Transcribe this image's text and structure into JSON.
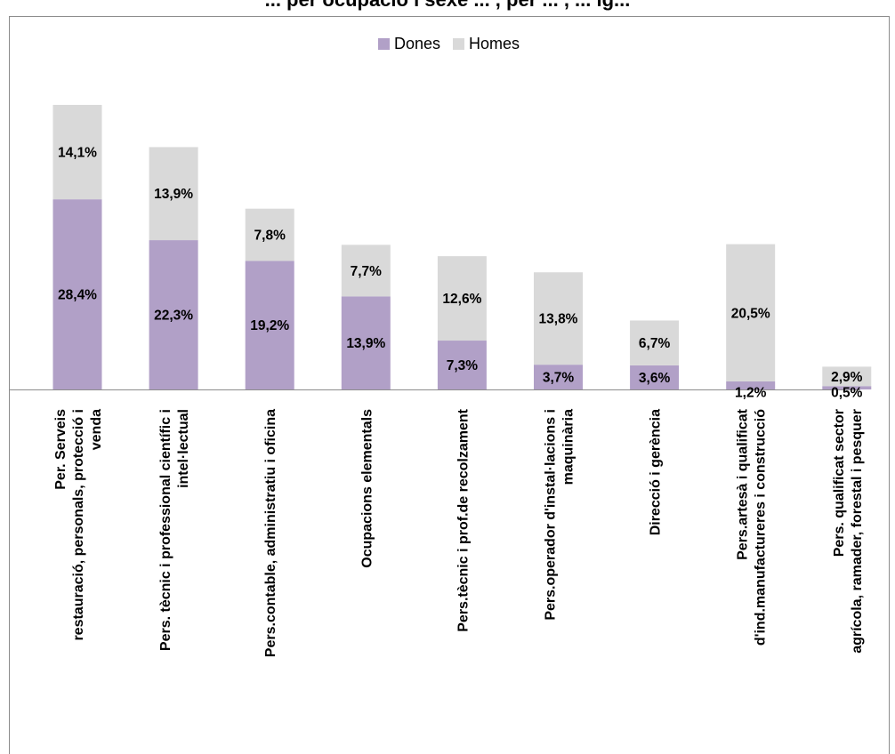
{
  "chart_data": {
    "type": "bar",
    "stacked": true,
    "title": "... per ocupació i sexe ... , per ... , ... ig...",
    "legend": {
      "position": "top-center"
    },
    "categories": [
      [
        "Per. Serveis",
        "restauració, personals, protecció i",
        "venda"
      ],
      [
        "Pers. tècnic i professional científic i",
        "intel·lectual"
      ],
      [
        "Pers.contable, administratiu i oficina"
      ],
      [
        "Ocupacions elementals"
      ],
      [
        "Pers.tècnic i prof.de recolzament"
      ],
      [
        "Pers.operador d'instal·lacions i",
        "maquinària"
      ],
      [
        "Direcció i gerència"
      ],
      [
        "Pers.artesà i qualificat",
        "d'ind.manufactureres i construcció"
      ],
      [
        "Pers. qualificat sector",
        "agrícola, ramader, forestal i pesquer"
      ]
    ],
    "series": [
      {
        "name": "Dones",
        "color": "#b1a0c7",
        "values": [
          28.4,
          22.3,
          19.2,
          13.9,
          7.3,
          3.7,
          3.6,
          1.2,
          0.5
        ],
        "labels": [
          "28,4%",
          "22,3%",
          "19,2%",
          "13,9%",
          "7,3%",
          "3,7%",
          "3,6%",
          "1,2%",
          "0,5%"
        ]
      },
      {
        "name": "Homes",
        "color": "#d9d9d9",
        "values": [
          14.1,
          13.9,
          7.8,
          7.7,
          12.6,
          13.8,
          6.7,
          20.5,
          2.9
        ],
        "labels": [
          "14,1%",
          "13,9%",
          "7,8%",
          "7,7%",
          "12,6%",
          "13,8%",
          "6,7%",
          "20,5%",
          "2,9%"
        ]
      }
    ],
    "ylim": [
      0,
      45
    ],
    "grid": false
  }
}
